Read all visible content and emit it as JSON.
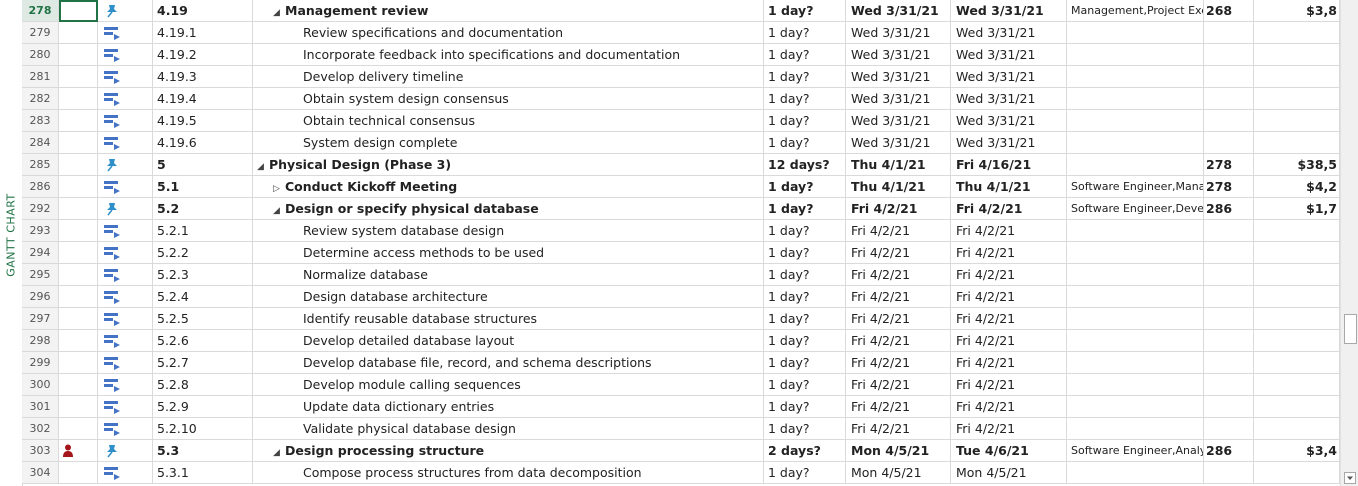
{
  "view_label": "GANTT CHART",
  "colors": {
    "accent": "#217346",
    "task_icon": "#4472c4",
    "pin": "#2f8fc9",
    "person": "#a4161a"
  },
  "rows": [
    {
      "id": "278",
      "selected": true,
      "mode": "pin",
      "wbs": "4.19",
      "level": 2,
      "summary": true,
      "expanded": true,
      "bold": true,
      "name": "Management review",
      "duration": "1 day?",
      "start": "Wed 3/31/21",
      "finish": "Wed 3/31/21",
      "resources": "Management,Project Exe",
      "predecessors": "268",
      "cost": "$3,8"
    },
    {
      "id": "279",
      "mode": "task",
      "wbs": "4.19.1",
      "level": 3,
      "name": "Review specifications and documentation",
      "duration": "1 day?",
      "start": "Wed 3/31/21",
      "finish": "Wed 3/31/21"
    },
    {
      "id": "280",
      "mode": "task",
      "wbs": "4.19.2",
      "level": 3,
      "name": "Incorporate feedback into specifications and documentation",
      "duration": "1 day?",
      "start": "Wed 3/31/21",
      "finish": "Wed 3/31/21"
    },
    {
      "id": "281",
      "mode": "task",
      "wbs": "4.19.3",
      "level": 3,
      "name": "Develop delivery timeline",
      "duration": "1 day?",
      "start": "Wed 3/31/21",
      "finish": "Wed 3/31/21"
    },
    {
      "id": "282",
      "mode": "task",
      "wbs": "4.19.4",
      "level": 3,
      "name": "Obtain system design consensus",
      "duration": "1 day?",
      "start": "Wed 3/31/21",
      "finish": "Wed 3/31/21"
    },
    {
      "id": "283",
      "mode": "task",
      "wbs": "4.19.5",
      "level": 3,
      "name": "Obtain technical consensus",
      "duration": "1 day?",
      "start": "Wed 3/31/21",
      "finish": "Wed 3/31/21"
    },
    {
      "id": "284",
      "mode": "task",
      "wbs": "4.19.6",
      "level": 3,
      "name": "System design complete",
      "duration": "1 day?",
      "start": "Wed 3/31/21",
      "finish": "Wed 3/31/21"
    },
    {
      "id": "285",
      "mode": "pin",
      "wbs": "5",
      "level": 1,
      "summary": true,
      "expanded": true,
      "bold": true,
      "name": "Physical Design (Phase 3)",
      "duration": "12 days?",
      "start": "Thu 4/1/21",
      "finish": "Fri 4/16/21",
      "predecessors": "278",
      "cost": "$38,5"
    },
    {
      "id": "286",
      "mode": "task",
      "wbs": "5.1",
      "level": 2,
      "summary": true,
      "expanded": false,
      "bold": true,
      "name": "Conduct Kickoff Meeting",
      "duration": "1 day?",
      "start": "Thu 4/1/21",
      "finish": "Thu 4/1/21",
      "resources": "Software Engineer,Mana",
      "predecessors": "278",
      "cost": "$4,2"
    },
    {
      "id": "292",
      "mode": "pin",
      "wbs": "5.2",
      "level": 2,
      "summary": true,
      "expanded": true,
      "bold": true,
      "name": "Design or specify physical database",
      "duration": "1 day?",
      "start": "Fri 4/2/21",
      "finish": "Fri 4/2/21",
      "resources": "Software Engineer,Deve",
      "predecessors": "286",
      "cost": "$1,7"
    },
    {
      "id": "293",
      "mode": "task",
      "wbs": "5.2.1",
      "level": 3,
      "name": "Review system database design",
      "duration": "1 day?",
      "start": "Fri 4/2/21",
      "finish": "Fri 4/2/21"
    },
    {
      "id": "294",
      "mode": "task",
      "wbs": "5.2.2",
      "level": 3,
      "name": "Determine access methods to be used",
      "duration": "1 day?",
      "start": "Fri 4/2/21",
      "finish": "Fri 4/2/21"
    },
    {
      "id": "295",
      "mode": "task",
      "wbs": "5.2.3",
      "level": 3,
      "name": "Normalize database",
      "duration": "1 day?",
      "start": "Fri 4/2/21",
      "finish": "Fri 4/2/21"
    },
    {
      "id": "296",
      "mode": "task",
      "wbs": "5.2.4",
      "level": 3,
      "name": "Design database architecture",
      "duration": "1 day?",
      "start": "Fri 4/2/21",
      "finish": "Fri 4/2/21"
    },
    {
      "id": "297",
      "mode": "task",
      "wbs": "5.2.5",
      "level": 3,
      "name": "Identify reusable database structures",
      "duration": "1 day?",
      "start": "Fri 4/2/21",
      "finish": "Fri 4/2/21"
    },
    {
      "id": "298",
      "mode": "task",
      "wbs": "5.2.6",
      "level": 3,
      "name": "Develop detailed database layout",
      "duration": "1 day?",
      "start": "Fri 4/2/21",
      "finish": "Fri 4/2/21"
    },
    {
      "id": "299",
      "mode": "task",
      "wbs": "5.2.7",
      "level": 3,
      "name": "Develop database file, record, and schema descriptions",
      "duration": "1 day?",
      "start": "Fri 4/2/21",
      "finish": "Fri 4/2/21"
    },
    {
      "id": "300",
      "mode": "task",
      "wbs": "5.2.8",
      "level": 3,
      "name": "Develop module calling sequences",
      "duration": "1 day?",
      "start": "Fri 4/2/21",
      "finish": "Fri 4/2/21"
    },
    {
      "id": "301",
      "mode": "task",
      "wbs": "5.2.9",
      "level": 3,
      "name": "Update data dictionary entries",
      "duration": "1 day?",
      "start": "Fri 4/2/21",
      "finish": "Fri 4/2/21"
    },
    {
      "id": "302",
      "mode": "task",
      "wbs": "5.2.10",
      "level": 3,
      "name": "Validate physical database design",
      "duration": "1 day?",
      "start": "Fri 4/2/21",
      "finish": "Fri 4/2/21"
    },
    {
      "id": "303",
      "indicator": "person",
      "mode": "pin",
      "wbs": "5.3",
      "level": 2,
      "summary": true,
      "expanded": true,
      "bold": true,
      "name": "Design processing structure",
      "duration": "2 days?",
      "start": "Mon 4/5/21",
      "finish": "Tue 4/6/21",
      "resources": "Software Engineer,Analy",
      "predecessors": "286",
      "cost": "$3,4"
    },
    {
      "id": "304",
      "mode": "task",
      "wbs": "5.3.1",
      "level": 3,
      "name": "Compose process structures from data decomposition",
      "duration": "1 day?",
      "start": "Mon 4/5/21",
      "finish": "Mon 4/5/21"
    }
  ]
}
